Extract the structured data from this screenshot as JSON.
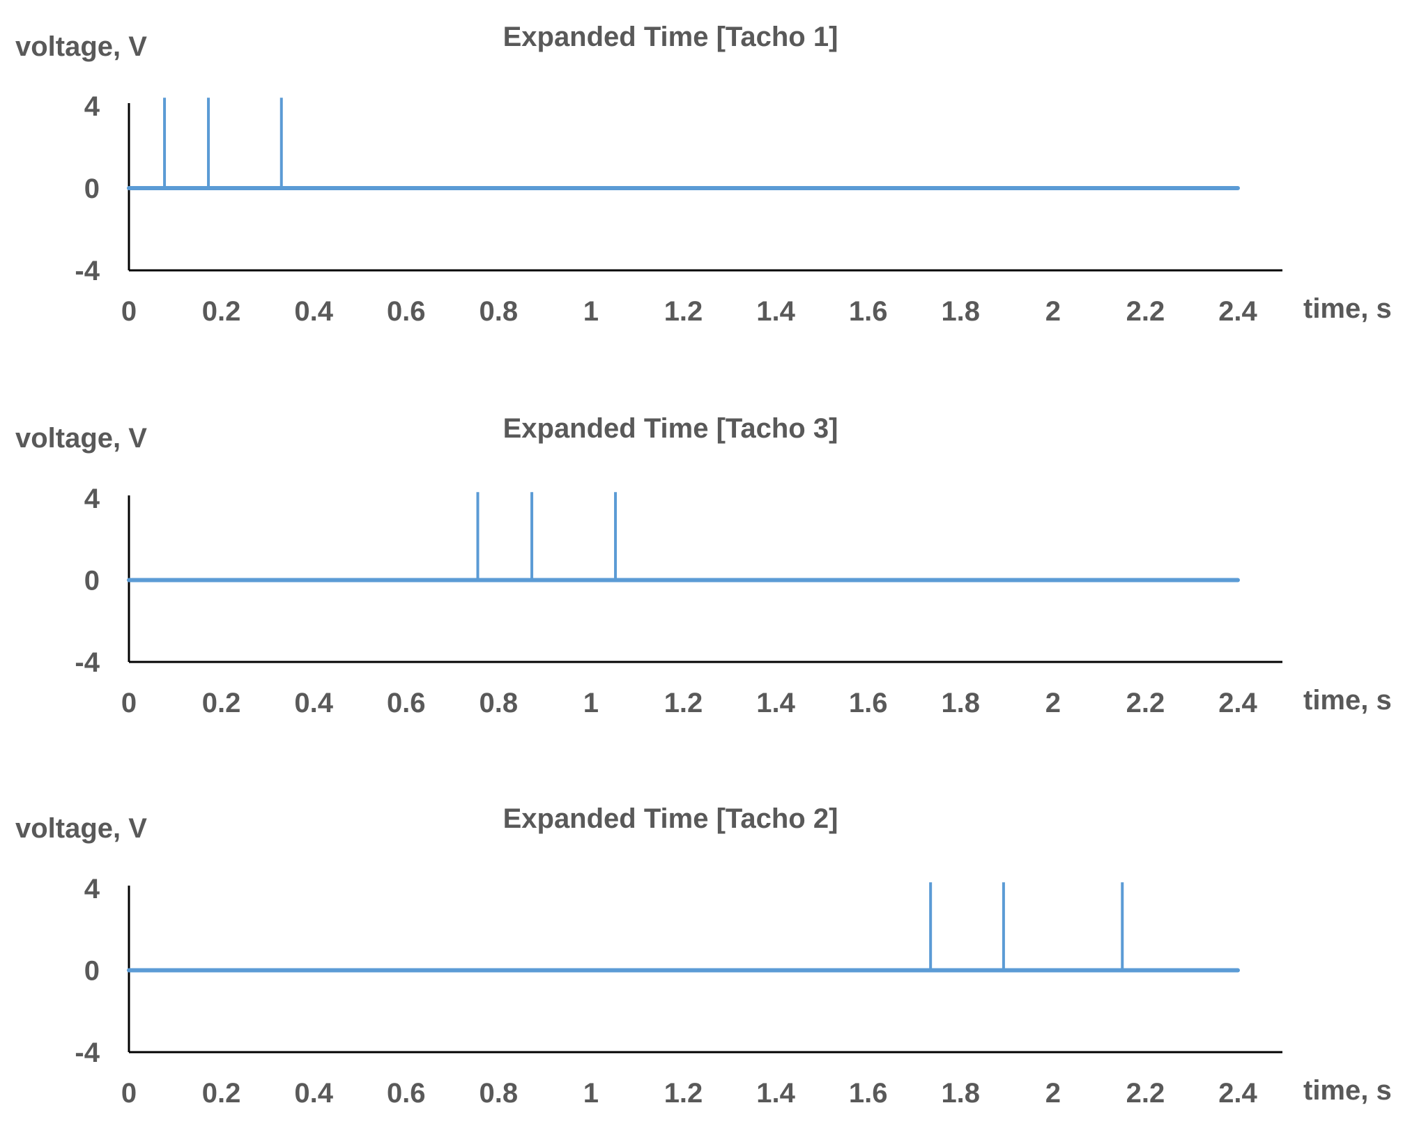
{
  "chart_data": [
    {
      "type": "line",
      "title": "Expanded Time [Tacho 1]",
      "ylabel": "voltage, V",
      "xlabel": "time, s",
      "xlim": [
        0,
        2.4
      ],
      "ylim": [
        -4,
        4
      ],
      "x_ticks": [
        "0",
        "0.2",
        "0.4",
        "0.6",
        "0.8",
        "1",
        "1.2",
        "1.4",
        "1.6",
        "1.8",
        "2",
        "2.2",
        "2.4"
      ],
      "y_ticks": [
        "4",
        "0",
        "-4"
      ],
      "series": [
        {
          "name": "Tacho 1",
          "baseline": 0,
          "pulse_times": [
            0.077,
            0.172,
            0.33
          ],
          "pulse_height": 4.4
        }
      ],
      "color": "#5b9bd5"
    },
    {
      "type": "line",
      "title": "Expanded Time [Tacho 3]",
      "ylabel": "voltage, V",
      "xlabel": "time, s",
      "xlim": [
        0,
        2.4
      ],
      "ylim": [
        -4,
        4
      ],
      "x_ticks": [
        "0",
        "0.2",
        "0.4",
        "0.6",
        "0.8",
        "1",
        "1.2",
        "1.4",
        "1.6",
        "1.8",
        "2",
        "2.2",
        "2.4"
      ],
      "y_ticks": [
        "4",
        "0",
        "-4"
      ],
      "series": [
        {
          "name": "Tacho 3",
          "baseline": 0,
          "pulse_times": [
            0.755,
            0.872,
            1.053
          ],
          "pulse_height": 4.3
        }
      ],
      "color": "#5b9bd5"
    },
    {
      "type": "line",
      "title": "Expanded Time [Tacho 2]",
      "ylabel": "voltage, V",
      "xlabel": "time, s",
      "xlim": [
        0,
        2.4
      ],
      "ylim": [
        -4,
        4
      ],
      "x_ticks": [
        "0",
        "0.2",
        "0.4",
        "0.6",
        "0.8",
        "1",
        "1.2",
        "1.4",
        "1.6",
        "1.8",
        "2",
        "2.2",
        "2.4"
      ],
      "y_ticks": [
        "4",
        "0",
        "-4"
      ],
      "series": [
        {
          "name": "Tacho 2",
          "baseline": 0,
          "pulse_times": [
            1.735,
            1.893,
            2.15
          ],
          "pulse_height": 4.3
        }
      ],
      "color": "#5b9bd5"
    }
  ]
}
